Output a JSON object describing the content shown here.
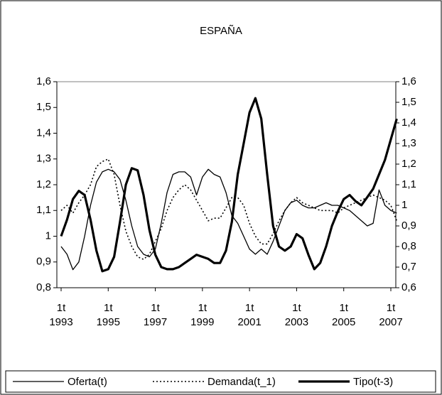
{
  "chart_data": {
    "type": "line",
    "title": "ESPAÑA",
    "categories": [
      "1t\n1993",
      null,
      null,
      null,
      null,
      null,
      null,
      null,
      "1t\n1995",
      null,
      null,
      null,
      null,
      null,
      null,
      null,
      "1t\n1997",
      null,
      null,
      null,
      null,
      null,
      null,
      null,
      "1t\n1999",
      null,
      null,
      null,
      null,
      null,
      null,
      null,
      "1t\n2001",
      null,
      null,
      null,
      null,
      null,
      null,
      null,
      "1t\n2003",
      null,
      null,
      null,
      null,
      null,
      null,
      null,
      "1t\n2005",
      null,
      null,
      null,
      null,
      null,
      null,
      null,
      "1t\n2007",
      null
    ],
    "series": [
      {
        "name": "Oferta(t)",
        "color": "#000000",
        "style": "solid",
        "values": [
          0.96,
          0.93,
          0.87,
          0.9,
          1.0,
          1.12,
          1.21,
          1.25,
          1.26,
          1.25,
          1.22,
          1.14,
          1.04,
          0.96,
          0.93,
          0.92,
          0.95,
          1.05,
          1.17,
          1.24,
          1.25,
          1.25,
          1.23,
          1.16,
          1.23,
          1.26,
          1.24,
          1.23,
          1.17,
          1.08,
          1.05,
          1.0,
          0.95,
          0.93,
          0.95,
          0.93,
          0.98,
          1.04,
          1.1,
          1.13,
          1.14,
          1.12,
          1.11,
          1.11,
          1.12,
          1.13,
          1.12,
          1.12,
          1.11,
          1.1,
          1.08,
          1.06,
          1.04,
          1.05,
          1.18,
          1.12,
          1.1,
          1.09
        ]
      },
      {
        "name": "Demanda(t_1)",
        "color": "#000000",
        "style": "dotted",
        "values": [
          1.1,
          1.12,
          1.09,
          1.13,
          1.16,
          1.2,
          1.27,
          1.29,
          1.3,
          1.24,
          1.12,
          1.02,
          0.96,
          0.92,
          0.91,
          0.93,
          0.98,
          1.03,
          1.1,
          1.15,
          1.18,
          1.2,
          1.18,
          1.14,
          1.1,
          1.06,
          1.07,
          1.07,
          1.11,
          1.15,
          1.15,
          1.12,
          1.05,
          1.0,
          0.97,
          0.97,
          1.01,
          1.06,
          1.1,
          1.13,
          1.15,
          1.13,
          1.12,
          1.11,
          1.1,
          1.1,
          1.1,
          1.09,
          1.11,
          1.12,
          1.13,
          1.14,
          1.15,
          1.16,
          1.15,
          1.14,
          1.12,
          1.06
        ]
      },
      {
        "name": "Tipo(t-3)",
        "color": "#000000",
        "style": "thick",
        "axis": "y2",
        "values": [
          0.85,
          0.93,
          1.03,
          1.07,
          1.05,
          0.93,
          0.78,
          0.68,
          0.69,
          0.75,
          0.92,
          1.1,
          1.18,
          1.17,
          1.05,
          0.88,
          0.76,
          0.7,
          0.69,
          0.69,
          0.7,
          0.72,
          0.74,
          0.76,
          0.75,
          0.74,
          0.72,
          0.72,
          0.78,
          0.92,
          1.15,
          1.3,
          1.45,
          1.52,
          1.42,
          1.15,
          0.9,
          0.8,
          0.78,
          0.8,
          0.86,
          0.84,
          0.76,
          0.69,
          0.72,
          0.8,
          0.9,
          0.97,
          1.03,
          1.05,
          1.02,
          1.0,
          1.04,
          1.08,
          1.15,
          1.22,
          1.32,
          1.42
        ]
      }
    ],
    "ylim": [
      0.8,
      1.6
    ],
    "yticks": [
      {
        "value": 0.8,
        "label": "0,8"
      },
      {
        "value": 0.9,
        "label": "0,9"
      },
      1,
      {
        "value": 1.1,
        "label": "1,1"
      },
      {
        "value": 1.2,
        "label": "1,2"
      },
      {
        "value": 1.3,
        "label": "1,3"
      },
      {
        "value": 1.4,
        "label": "1,4"
      },
      {
        "value": 1.5,
        "label": "1,5"
      },
      {
        "value": 1.6,
        "label": "1,6"
      }
    ],
    "y2lim": [
      0.6,
      1.6
    ],
    "y2ticks": [
      {
        "value": 0.6,
        "label": "0,6"
      },
      {
        "value": 0.7,
        "label": "0,7"
      },
      {
        "value": 0.8,
        "label": "0,8"
      },
      {
        "value": 0.9,
        "label": "0,9"
      },
      1,
      {
        "value": 1.1,
        "label": "1,1"
      },
      {
        "value": 1.2,
        "label": "1,2"
      },
      {
        "value": 1.3,
        "label": "1,3"
      },
      {
        "value": 1.4,
        "label": "1,4"
      },
      {
        "value": 1.5,
        "label": "1,5"
      },
      {
        "value": 1.6,
        "label": "1,6"
      }
    ],
    "grid": false,
    "legend": "bottom"
  }
}
